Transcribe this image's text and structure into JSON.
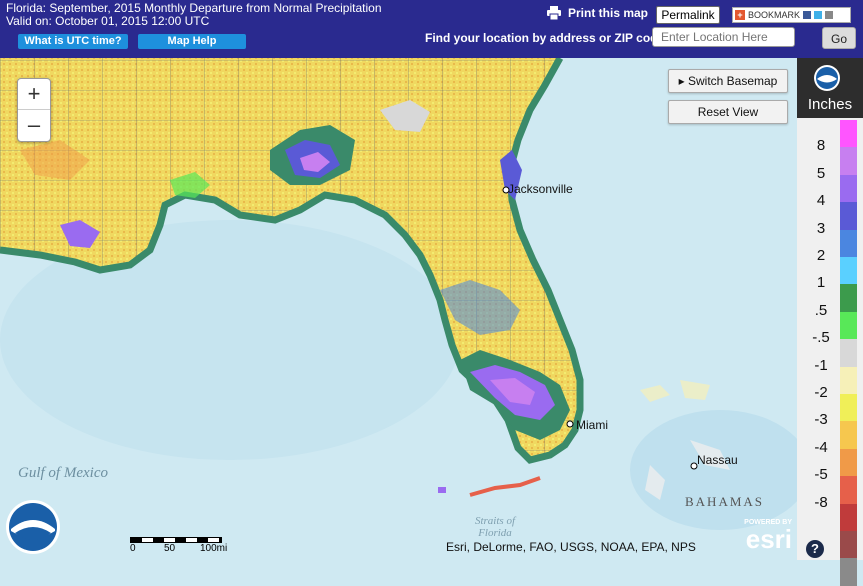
{
  "header": {
    "title": "Florida: September, 2015 Monthly Departure from Normal Precipitation",
    "valid_on": "Valid on: October 01, 2015 12:00 UTC",
    "utc_button": "What is UTC time?",
    "help_button": "Map Help",
    "print_label": "Print this map",
    "permalink_label": "Permalink",
    "bookmark_label": "BOOKMARK",
    "find_label": "Find your location by address or ZIP code:",
    "location_placeholder": "Enter Location Here",
    "go_label": "Go"
  },
  "map": {
    "zoom_in": "+",
    "zoom_out": "–",
    "switch_basemap": "▸ Switch Basemap",
    "reset_view": "Reset View",
    "places": [
      {
        "label": "Jacksonville"
      },
      {
        "label": "Miami"
      },
      {
        "label": "Nassau"
      }
    ],
    "ocean_label": "Gulf of Mexico",
    "bahamas_label": "BAHAMAS",
    "straits_label": "Straits of Florida",
    "scale": {
      "labels": [
        "0",
        "50",
        "100mi"
      ]
    },
    "attribution": "Esri, DeLorme, FAO, USGS, NOAA, EPA, NPS",
    "esri_label": "esri",
    "esri_powered": "POWERED BY"
  },
  "legend": {
    "unit": "Inches",
    "ticks": [
      "8",
      "5",
      "4",
      "3",
      "2",
      "1",
      ".5",
      "-.5",
      "-1",
      "-2",
      "-3",
      "-4",
      "-5",
      "-8"
    ],
    "colors": [
      "#ff55ff",
      "#c77ff0",
      "#9a6bf0",
      "#5a5ad6",
      "#4b86e0",
      "#5ad0ff",
      "#3c9b4c",
      "#58e858",
      "#d8d8d8",
      "#f6f0b8",
      "#f0ef58",
      "#f6c74e",
      "#f09a48",
      "#e6604a",
      "#c03b3b",
      "#9a4a4a",
      "#8a8a8a"
    ]
  },
  "colors": {
    "header_bg": "#2a2a8f",
    "water": "#cfe9f2",
    "land_dry": "#f0d860",
    "land_wet": "#3a8a6a"
  }
}
